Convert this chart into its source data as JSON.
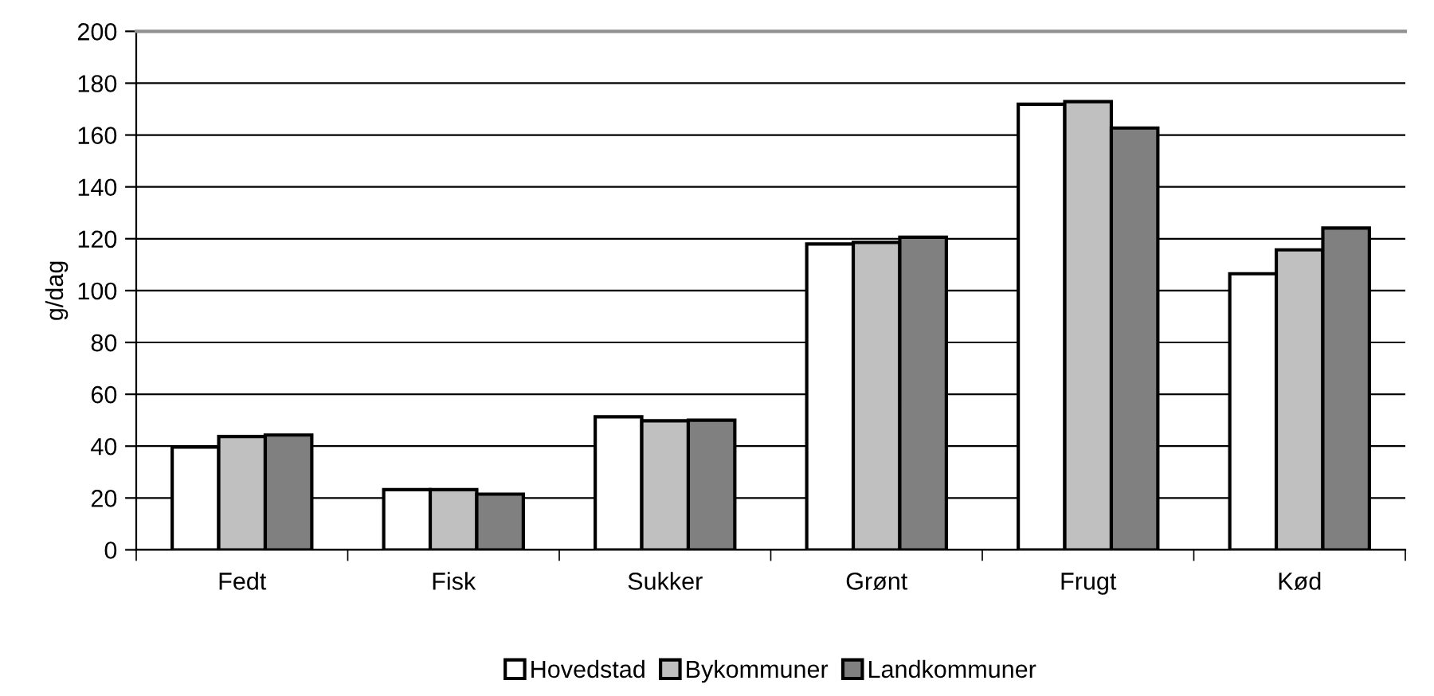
{
  "chart_data": {
    "type": "bar",
    "ylabel": "g/dag",
    "categories": [
      "Fedt",
      "Fisk",
      "Sukker",
      "Grønt",
      "Frugt",
      "Kød"
    ],
    "series": [
      {
        "name": "Hovedstad",
        "color": "#ffffff",
        "values": [
          39.6,
          23.2,
          51.3,
          118,
          171.9,
          106.5
        ]
      },
      {
        "name": "Bykommuner",
        "color": "#c0c0c0",
        "values": [
          43.7,
          23.2,
          49.8,
          118.6,
          172.9,
          115.7
        ]
      },
      {
        "name": "Landkommuner",
        "color": "#808080",
        "values": [
          44.3,
          21.5,
          50,
          120.6,
          162.7,
          124.1
        ]
      }
    ],
    "ylim": [
      0,
      200
    ],
    "yticks": [
      0,
      20,
      40,
      60,
      80,
      100,
      120,
      140,
      160,
      180,
      200
    ],
    "grid": "y",
    "legend": "bottom"
  }
}
